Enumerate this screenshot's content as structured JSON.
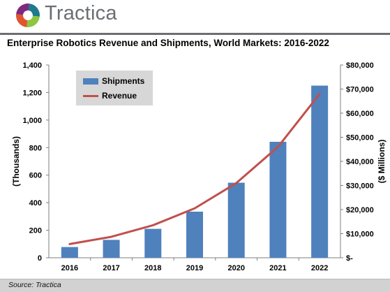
{
  "brand": {
    "name": "Tractica",
    "logo_colors": [
      "#1f7a8c",
      "#8dc63f",
      "#e0542e",
      "#7d2a7e"
    ]
  },
  "chart_data": {
    "type": "bar",
    "title": "Enterprise Robotics Revenue and Shipments, World Markets: 2016-2022",
    "categories": [
      "2016",
      "2017",
      "2018",
      "2019",
      "2020",
      "2021",
      "2022"
    ],
    "series": [
      {
        "name": "Shipments",
        "type": "bar",
        "axis": "left",
        "color": "#4f81bd",
        "values": [
          78,
          130,
          210,
          335,
          545,
          842,
          1250
        ]
      },
      {
        "name": "Revenue",
        "type": "line",
        "axis": "right",
        "color": "#c0504d",
        "values": [
          5700,
          8700,
          13500,
          20500,
          31000,
          46000,
          68000
        ]
      }
    ],
    "y_left": {
      "label": "(Thousands)",
      "ylim": [
        0,
        1400
      ],
      "ticks": [
        "0",
        "200",
        "400",
        "600",
        "800",
        "1,000",
        "1,200",
        "1,400"
      ]
    },
    "y_right": {
      "label": "($ Millions)",
      "ylim": [
        0,
        80000
      ],
      "ticks": [
        "$-",
        "$10,000",
        "$20,000",
        "$30,000",
        "$40,000",
        "$50,000",
        "$60,000",
        "$70,000",
        "$80,000"
      ]
    },
    "grid": false,
    "legend_position": "top-left"
  },
  "footer": {
    "source": "Source: Tractica"
  }
}
